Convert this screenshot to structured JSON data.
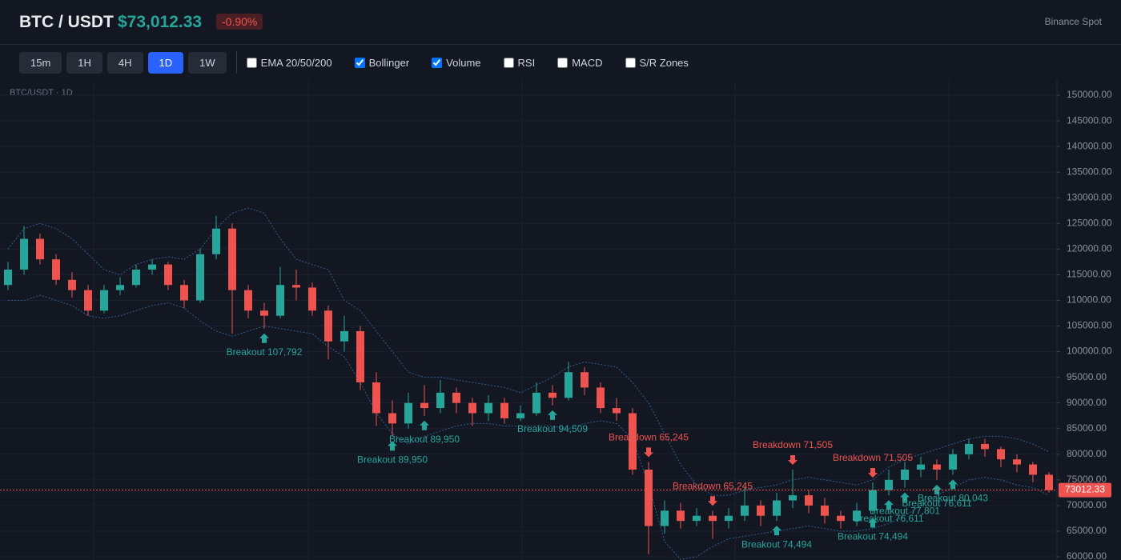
{
  "header": {
    "symbol": "BTC / USDT",
    "price": "$73,012.33",
    "change": "-0.90%",
    "exchange": "Binance Spot"
  },
  "toolbar": {
    "intervals": [
      {
        "label": "15m",
        "active": false
      },
      {
        "label": "1H",
        "active": false
      },
      {
        "label": "4H",
        "active": false
      },
      {
        "label": "1D",
        "active": true
      },
      {
        "label": "1W",
        "active": false
      }
    ],
    "indicators": [
      {
        "label": "EMA 20/50/200",
        "checked": false
      },
      {
        "label": "Bollinger",
        "checked": true
      },
      {
        "label": "Volume",
        "checked": true
      },
      {
        "label": "RSI",
        "checked": false
      },
      {
        "label": "MACD",
        "checked": false
      },
      {
        "label": "S/R Zones",
        "checked": false
      }
    ]
  },
  "chart_data": {
    "type": "candlestick",
    "title": "BTC/USDT · 1D",
    "up_color": "#26a69a",
    "down_color": "#ef5350",
    "band_color": "#2f5f8f",
    "ylim": [
      59375,
      152969
    ],
    "yticks": [
      {
        "value": 60000,
        "label": "60000.00"
      },
      {
        "value": 65000,
        "label": "65000.00"
      },
      {
        "value": 70000,
        "label": "70000.00"
      },
      {
        "value": 75000,
        "label": "75000.00"
      },
      {
        "value": 80000,
        "label": "80000.00"
      },
      {
        "value": 85000,
        "label": "85000.00"
      },
      {
        "value": 90000,
        "label": "90000.00"
      },
      {
        "value": 95000,
        "label": "95000.00"
      },
      {
        "value": 100000,
        "label": "100000.00"
      },
      {
        "value": 105000,
        "label": "105000.00"
      },
      {
        "value": 110000,
        "label": "110000.00"
      },
      {
        "value": 115000,
        "label": "115000.00"
      },
      {
        "value": 120000,
        "label": "120000.00"
      },
      {
        "value": 125000,
        "label": "125000.00"
      },
      {
        "value": 130000,
        "label": "130000.00"
      },
      {
        "value": 135000,
        "label": "135000.00"
      },
      {
        "value": 140000,
        "label": "140000.00"
      },
      {
        "value": 145000,
        "label": "145000.00"
      },
      {
        "value": 150000,
        "label": "150000.00"
      }
    ],
    "candles": [
      {
        "o": 113000,
        "h": 117500,
        "l": 112000,
        "c": 116000
      },
      {
        "o": 116000,
        "h": 124500,
        "l": 115000,
        "c": 122000
      },
      {
        "o": 122000,
        "h": 123000,
        "l": 117000,
        "c": 118000
      },
      {
        "o": 118000,
        "h": 119000,
        "l": 113000,
        "c": 114000
      },
      {
        "o": 114000,
        "h": 115500,
        "l": 110500,
        "c": 112000
      },
      {
        "o": 112000,
        "h": 113000,
        "l": 107000,
        "c": 108000
      },
      {
        "o": 108000,
        "h": 113000,
        "l": 107500,
        "c": 112000
      },
      {
        "o": 112000,
        "h": 114500,
        "l": 111000,
        "c": 113000
      },
      {
        "o": 113000,
        "h": 117000,
        "l": 112500,
        "c": 116000
      },
      {
        "o": 116000,
        "h": 118000,
        "l": 115000,
        "c": 117000
      },
      {
        "o": 117000,
        "h": 117500,
        "l": 112000,
        "c": 113000
      },
      {
        "o": 113000,
        "h": 114000,
        "l": 108500,
        "c": 110000
      },
      {
        "o": 110000,
        "h": 120000,
        "l": 109500,
        "c": 119000
      },
      {
        "o": 119000,
        "h": 126500,
        "l": 118000,
        "c": 124000
      },
      {
        "o": 124000,
        "h": 125000,
        "l": 103500,
        "c": 112000
      },
      {
        "o": 112000,
        "h": 113000,
        "l": 106500,
        "c": 108000
      },
      {
        "o": 108000,
        "h": 109500,
        "l": 104500,
        "c": 107000
      },
      {
        "o": 107000,
        "h": 116500,
        "l": 106500,
        "c": 113000
      },
      {
        "o": 113000,
        "h": 116000,
        "l": 110000,
        "c": 112500
      },
      {
        "o": 112500,
        "h": 113500,
        "l": 107000,
        "c": 108000
      },
      {
        "o": 108000,
        "h": 109000,
        "l": 98500,
        "c": 102000
      },
      {
        "o": 102000,
        "h": 107000,
        "l": 100000,
        "c": 104000
      },
      {
        "o": 104000,
        "h": 105000,
        "l": 92500,
        "c": 94000
      },
      {
        "o": 94000,
        "h": 96000,
        "l": 85500,
        "c": 88000
      },
      {
        "o": 88000,
        "h": 90500,
        "l": 83500,
        "c": 86000
      },
      {
        "o": 86000,
        "h": 92000,
        "l": 85000,
        "c": 90000
      },
      {
        "o": 90000,
        "h": 93500,
        "l": 87500,
        "c": 89000
      },
      {
        "o": 89000,
        "h": 94500,
        "l": 88000,
        "c": 92000
      },
      {
        "o": 92000,
        "h": 93000,
        "l": 88000,
        "c": 90000
      },
      {
        "o": 90000,
        "h": 91000,
        "l": 85500,
        "c": 88000
      },
      {
        "o": 88000,
        "h": 91500,
        "l": 86500,
        "c": 90000
      },
      {
        "o": 90000,
        "h": 91000,
        "l": 86000,
        "c": 87000
      },
      {
        "o": 87000,
        "h": 89500,
        "l": 86500,
        "c": 88000
      },
      {
        "o": 88000,
        "h": 94000,
        "l": 87500,
        "c": 92000
      },
      {
        "o": 92000,
        "h": 93500,
        "l": 89500,
        "c": 91000
      },
      {
        "o": 91000,
        "h": 98000,
        "l": 90500,
        "c": 96000
      },
      {
        "o": 96000,
        "h": 97000,
        "l": 91500,
        "c": 93000
      },
      {
        "o": 93000,
        "h": 94000,
        "l": 88000,
        "c": 89000
      },
      {
        "o": 89000,
        "h": 91000,
        "l": 86500,
        "c": 88000
      },
      {
        "o": 88000,
        "h": 89000,
        "l": 76000,
        "c": 77000
      },
      {
        "o": 77000,
        "h": 78500,
        "l": 60500,
        "c": 66000
      },
      {
        "o": 66000,
        "h": 71000,
        "l": 64500,
        "c": 69000
      },
      {
        "o": 69000,
        "h": 70500,
        "l": 65500,
        "c": 67000
      },
      {
        "o": 67000,
        "h": 69500,
        "l": 66000,
        "c": 68000
      },
      {
        "o": 68000,
        "h": 69000,
        "l": 63500,
        "c": 67000
      },
      {
        "o": 67000,
        "h": 69500,
        "l": 65500,
        "c": 68000
      },
      {
        "o": 68000,
        "h": 73500,
        "l": 67000,
        "c": 70000
      },
      {
        "o": 70000,
        "h": 71000,
        "l": 66000,
        "c": 68000
      },
      {
        "o": 68000,
        "h": 72500,
        "l": 67000,
        "c": 71000
      },
      {
        "o": 71000,
        "h": 77000,
        "l": 69500,
        "c": 72000
      },
      {
        "o": 72000,
        "h": 73000,
        "l": 68500,
        "c": 70000
      },
      {
        "o": 70000,
        "h": 71500,
        "l": 66500,
        "c": 68000
      },
      {
        "o": 68000,
        "h": 69000,
        "l": 65500,
        "c": 67000
      },
      {
        "o": 67000,
        "h": 70500,
        "l": 66000,
        "c": 69000
      },
      {
        "o": 69000,
        "h": 74500,
        "l": 68500,
        "c": 73000
      },
      {
        "o": 73000,
        "h": 77000,
        "l": 72000,
        "c": 75000
      },
      {
        "o": 75000,
        "h": 78500,
        "l": 73500,
        "c": 77000
      },
      {
        "o": 77000,
        "h": 79500,
        "l": 75500,
        "c": 78000
      },
      {
        "o": 78000,
        "h": 79000,
        "l": 75000,
        "c": 77000
      },
      {
        "o": 77000,
        "h": 81000,
        "l": 76000,
        "c": 80000
      },
      {
        "o": 80000,
        "h": 83000,
        "l": 79000,
        "c": 82000
      },
      {
        "o": 82000,
        "h": 83000,
        "l": 79500,
        "c": 81000
      },
      {
        "o": 81000,
        "h": 81500,
        "l": 77500,
        "c": 79000
      },
      {
        "o": 79000,
        "h": 80000,
        "l": 76500,
        "c": 78000
      },
      {
        "o": 78000,
        "h": 78500,
        "l": 74500,
        "c": 76000
      },
      {
        "o": 76000,
        "h": 76500,
        "l": 72500,
        "c": 73012.33
      }
    ],
    "bollinger_upper": [
      120000,
      124000,
      125000,
      124000,
      122000,
      119000,
      116000,
      115000,
      117000,
      118000,
      118500,
      118000,
      120000,
      124000,
      127000,
      128000,
      127000,
      122000,
      118000,
      117000,
      116000,
      110000,
      108000,
      104000,
      100000,
      96000,
      95000,
      95000,
      94500,
      94000,
      93500,
      93000,
      92000,
      93500,
      95000,
      97000,
      98000,
      97500,
      97000,
      94000,
      90000,
      84000,
      78000,
      74000,
      72000,
      72000,
      73000,
      73500,
      74000,
      75000,
      75500,
      75000,
      74500,
      74000,
      75000,
      77500,
      79000,
      80000,
      81000,
      82000,
      83000,
      83500,
      83500,
      83000,
      82000,
      80500
    ],
    "bollinger_lower": [
      110000,
      110000,
      111000,
      110000,
      109000,
      107000,
      106500,
      107000,
      108000,
      109000,
      109500,
      108500,
      106000,
      104000,
      103000,
      104000,
      105000,
      104500,
      104000,
      103500,
      101000,
      99000,
      94000,
      88000,
      84000,
      82000,
      83500,
      84500,
      85500,
      86000,
      86000,
      85500,
      85500,
      85500,
      85500,
      85000,
      86000,
      86500,
      86000,
      83000,
      74000,
      63000,
      59500,
      60000,
      62000,
      63500,
      64000,
      64500,
      65000,
      65500,
      66000,
      65500,
      65000,
      65000,
      65500,
      66500,
      68000,
      70000,
      72000,
      73500,
      75000,
      75500,
      75000,
      74000,
      73500,
      72000
    ],
    "signals": [
      {
        "text": "Breakout 107,792",
        "x": 16,
        "direction": "up"
      },
      {
        "text": "Breakout 89,950",
        "x": 24,
        "direction": "up"
      },
      {
        "text": "Breakout 89,950",
        "x": 26,
        "direction": "up"
      },
      {
        "text": "Breakout 94,509",
        "x": 34,
        "direction": "up"
      },
      {
        "text": "Breakdown 65,245",
        "x": 40,
        "direction": "down"
      },
      {
        "text": "Breakdown 65,245",
        "x": 44,
        "direction": "down"
      },
      {
        "text": "Breakdown 71,505",
        "x": 49,
        "direction": "down"
      },
      {
        "text": "Breakout 74,494",
        "x": 48,
        "direction": "up"
      },
      {
        "text": "Breakdown 71,505",
        "x": 54,
        "direction": "down"
      },
      {
        "text": "Breakout 74,494",
        "x": 54,
        "direction": "up"
      },
      {
        "text": "Breakout 76,611",
        "x": 55,
        "direction": "up"
      },
      {
        "text": "Breakout 77,801",
        "x": 56,
        "direction": "up"
      },
      {
        "text": "Breakout 76,611",
        "x": 58,
        "direction": "up"
      },
      {
        "text": "Breakout 80,043",
        "x": 59,
        "direction": "up"
      }
    ],
    "last_price": {
      "value": 73012.33,
      "label": "73012.33"
    }
  }
}
